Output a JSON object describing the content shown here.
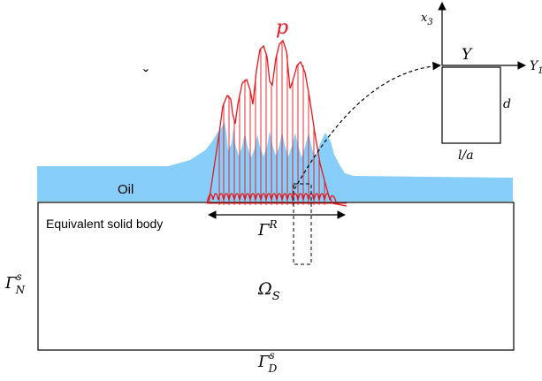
{
  "labels": {
    "pressure": "p",
    "oil": "Oil",
    "solid_body": "Equivalent solid body",
    "gamma_r": {
      "base": "Γ",
      "sup": "R"
    },
    "gamma_n": {
      "base": "Γ",
      "sup": "s",
      "sub": "N"
    },
    "gamma_d": {
      "base": "Γ",
      "sup": "s",
      "sub": "D"
    },
    "omega_s": {
      "base": "Ω",
      "sub": "S"
    },
    "axis_x3": {
      "base": "x",
      "sub": "3"
    },
    "axis_y1": {
      "base": "Y",
      "sub": "1"
    },
    "upsilon": "Υ",
    "depth": "d",
    "width": "l/a",
    "checkmark": "ˇ"
  },
  "colors": {
    "oil": "#87cefa",
    "pressure": "#e8161c",
    "line": "#000000"
  }
}
